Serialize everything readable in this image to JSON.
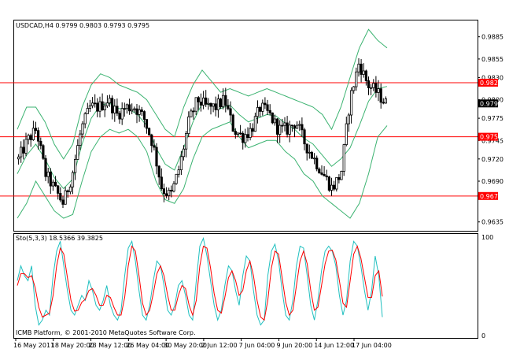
{
  "header": {
    "price_info": "USDCAD,H4  0.9799 0.9803 0.9793 0.9795",
    "stoch_info": "Sto(5,3,3) 18.5366 39.3825",
    "copyright": "ICMB Platform, © 2001-2010 MetaQuotes Software Corp."
  },
  "colors": {
    "background": "#ffffff",
    "candle": "#000000",
    "bollinger": "#3cb371",
    "support_resistance": "#ff0000",
    "stoch_main": "#20c0c0",
    "stoch_signal": "#ff0000",
    "price_tag": "#000000",
    "level_tag": "#ff0000"
  },
  "chart_data": [
    {
      "type": "candlestick",
      "symbol": "USDCAD",
      "timeframe": "H4",
      "last_price_label": "0.9795",
      "ylim": [
        0.9623,
        0.9907
      ],
      "yticks": [
        "0.9885",
        "0.9855",
        "0.9830",
        "0.9800",
        "0.9775",
        "0.9745",
        "0.9720",
        "0.9690",
        "0.9635"
      ],
      "horizontal_levels": [
        {
          "value": 0.9823,
          "label": "0.9823"
        },
        {
          "value": 0.975,
          "label": "0.9750"
        },
        {
          "value": 0.967,
          "label": "0.9670"
        }
      ],
      "x_labels": [
        "16 May 2011",
        "18 May 20:00",
        "23 May 12:00",
        "26 May 04:00",
        "30 May 20:00",
        "2 Jun 12:00",
        "7 Jun 04:00",
        "9 Jun 20:00",
        "14 Jun 12:00",
        "17 Jun 04:00"
      ],
      "close_path": [
        0.972,
        0.9745,
        0.976,
        0.97,
        0.968,
        0.966,
        0.97,
        0.976,
        0.979,
        0.979,
        0.98,
        0.978,
        0.979,
        0.979,
        0.9775,
        0.974,
        0.968,
        0.967,
        0.971,
        0.977,
        0.98,
        0.979,
        0.979,
        0.98,
        0.976,
        0.975,
        0.976,
        0.979,
        0.978,
        0.976,
        0.976,
        0.977,
        0.974,
        0.972,
        0.97,
        0.968,
        0.97,
        0.98,
        0.985,
        0.982,
        0.981,
        0.9795
      ],
      "bollinger_upper_path": [
        0.976,
        0.979,
        0.979,
        0.977,
        0.974,
        0.972,
        0.974,
        0.979,
        0.982,
        0.9835,
        0.983,
        0.982,
        0.9815,
        0.981,
        0.98,
        0.978,
        0.976,
        0.975,
        0.979,
        0.982,
        0.984,
        0.9825,
        0.981,
        0.9815,
        0.981,
        0.9805,
        0.981,
        0.9815,
        0.981,
        0.9805,
        0.98,
        0.9795,
        0.979,
        0.978,
        0.976,
        0.979,
        0.983,
        0.987,
        0.9895,
        0.988,
        0.987
      ],
      "bollinger_lower_path": [
        0.964,
        0.966,
        0.969,
        0.967,
        0.965,
        0.964,
        0.9645,
        0.969,
        0.973,
        0.975,
        0.976,
        0.9755,
        0.976,
        0.975,
        0.973,
        0.969,
        0.9665,
        0.966,
        0.968,
        0.972,
        0.975,
        0.976,
        0.9765,
        0.977,
        0.975,
        0.9735,
        0.974,
        0.9745,
        0.9745,
        0.973,
        0.972,
        0.97,
        0.969,
        0.967,
        0.966,
        0.965,
        0.964,
        0.966,
        0.97,
        0.975,
        0.9765
      ],
      "bollinger_middle_path": [
        0.97,
        0.9725,
        0.974,
        0.972,
        0.9695,
        0.968,
        0.9693,
        0.974,
        0.9775,
        0.9793,
        0.9795,
        0.9788,
        0.9788,
        0.978,
        0.9765,
        0.9735,
        0.9713,
        0.9705,
        0.9735,
        0.977,
        0.9795,
        0.9793,
        0.9788,
        0.9793,
        0.978,
        0.977,
        0.9775,
        0.978,
        0.9778,
        0.9768,
        0.976,
        0.9748,
        0.974,
        0.9725,
        0.971,
        0.972,
        0.9735,
        0.9765,
        0.9798,
        0.9815,
        0.9818
      ]
    },
    {
      "type": "line",
      "name": "Sto(5,3,3)",
      "main_value": "18.5366",
      "signal_value": "39.3825",
      "ylim": [
        0,
        100
      ],
      "yticks": [
        "100",
        "0"
      ],
      "series": [
        {
          "values": [
            55,
            70,
            60,
            55,
            70,
            30,
            10,
            15,
            25,
            20,
            60,
            85,
            95,
            70,
            45,
            25,
            20,
            30,
            40,
            35,
            55,
            45,
            30,
            25,
            35,
            50,
            30,
            20,
            15,
            25,
            60,
            88,
            95,
            75,
            45,
            20,
            15,
            30,
            55,
            75,
            70,
            50,
            25,
            20,
            30,
            50,
            55,
            40,
            20,
            15,
            55,
            90,
            98,
            80,
            55,
            30,
            15,
            25,
            50,
            70,
            65,
            45,
            30,
            60,
            80,
            75,
            45,
            20,
            10,
            15,
            60,
            85,
            92,
            75,
            45,
            20,
            15,
            35,
            70,
            90,
            88,
            60,
            30,
            15,
            35,
            65,
            85,
            90,
            85,
            70,
            40,
            20,
            35,
            75,
            95,
            90,
            70,
            45,
            25,
            45,
            80,
            60,
            18
          ]
        },
        {
          "values": [
            50,
            62,
            62,
            58,
            60,
            48,
            28,
            18,
            20,
            22,
            40,
            70,
            88,
            82,
            58,
            35,
            24,
            25,
            33,
            36,
            45,
            47,
            40,
            30,
            30,
            40,
            38,
            28,
            20,
            20,
            38,
            70,
            90,
            85,
            60,
            32,
            20,
            25,
            42,
            62,
            70,
            60,
            40,
            25,
            25,
            40,
            50,
            47,
            30,
            20,
            35,
            70,
            90,
            88,
            68,
            42,
            25,
            22,
            38,
            58,
            65,
            55,
            40,
            45,
            65,
            75,
            60,
            35,
            18,
            15,
            35,
            68,
            85,
            82,
            58,
            33,
            20,
            25,
            50,
            75,
            85,
            72,
            45,
            25,
            28,
            50,
            72,
            85,
            86,
            76,
            55,
            32,
            28,
            55,
            82,
            90,
            78,
            58,
            38,
            38,
            60,
            65,
            39
          ]
        }
      ]
    }
  ]
}
